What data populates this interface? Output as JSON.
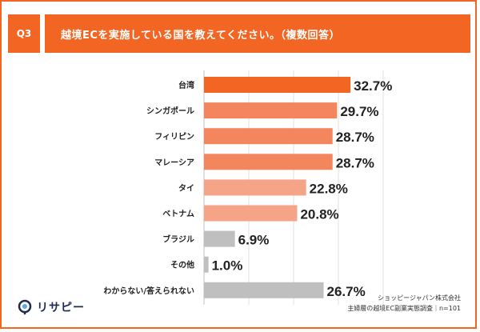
{
  "header": {
    "badge": "Q3",
    "question": "越境ECを実施している国を教えてください。（複数回答）"
  },
  "chart_data": {
    "type": "bar",
    "orientation": "horizontal",
    "categories": [
      "台湾",
      "シンガポール",
      "フィリピン",
      "マレーシア",
      "タイ",
      "ベトナム",
      "ブラジル",
      "その他",
      "わからない/答えられない"
    ],
    "values": [
      32.7,
      29.7,
      28.7,
      28.7,
      22.8,
      20.8,
      6.9,
      1.0,
      26.7
    ],
    "value_labels": [
      "32.7%",
      "29.7%",
      "28.7%",
      "28.7%",
      "22.8%",
      "20.8%",
      "6.9%",
      "1.0%",
      "26.7%"
    ],
    "bar_colors": [
      "#f26522",
      "#f4865e",
      "#f4865e",
      "#f4865e",
      "#f6a488",
      "#f6a488",
      "#bfbfbf",
      "#bfbfbf",
      "#bfbfbf"
    ],
    "xlim": [
      0,
      40
    ],
    "grid": true
  },
  "footer": {
    "logo_text": "リサピー",
    "source_line1": "ショッピージャパン株式会社",
    "source_line2": "主婦層の越境EC副業実態調査｜n=101"
  },
  "colors": {
    "accent": "#f26522",
    "navy": "#1d2b53",
    "light_blue": "#5aa9e6"
  }
}
